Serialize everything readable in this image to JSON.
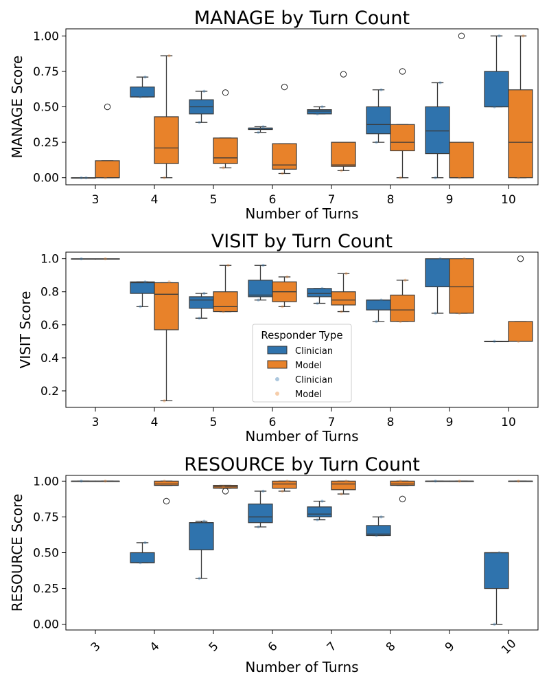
{
  "colors": {
    "Clinician": "#2f73ad",
    "Model": "#e8822a",
    "median": "#3a3a3a",
    "whisker": "#3a3a3a"
  },
  "chart_data": [
    {
      "type": "box",
      "title": "MANAGE by Turn Count",
      "xlabel": "Number of Turns",
      "ylabel": "MANAGE Score",
      "categories": [
        "3",
        "4",
        "5",
        "6",
        "7",
        "8",
        "9",
        "10"
      ],
      "ylim": [
        -0.05,
        1.05
      ],
      "yticks": [
        "0.00",
        "0.25",
        "0.50",
        "0.75",
        "1.00"
      ],
      "xtick_rotation": 0,
      "legend": null,
      "series": [
        {
          "name": "Clinician",
          "boxes": [
            {
              "min": 0.0,
              "q1": 0.0,
              "median": 0.0,
              "q3": 0.0,
              "max": 0.0,
              "outliers": [],
              "points": [
                0.0,
                0.0
              ]
            },
            {
              "min": 0.57,
              "q1": 0.57,
              "median": 0.57,
              "q3": 0.64,
              "max": 0.71,
              "outliers": [],
              "points": [
                0.57,
                0.71
              ]
            },
            {
              "min": 0.39,
              "q1": 0.45,
              "median": 0.5,
              "q3": 0.55,
              "max": 0.61,
              "outliers": [],
              "points": [
                0.39,
                0.61
              ]
            },
            {
              "min": 0.32,
              "q1": 0.34,
              "median": 0.35,
              "q3": 0.35,
              "max": 0.36,
              "outliers": [],
              "points": [
                0.32,
                0.36
              ]
            },
            {
              "min": 0.45,
              "q1": 0.45,
              "median": 0.47,
              "q3": 0.48,
              "max": 0.5,
              "outliers": [],
              "points": [
                0.45,
                0.5
              ]
            },
            {
              "min": 0.25,
              "q1": 0.31,
              "median": 0.375,
              "q3": 0.5,
              "max": 0.62,
              "outliers": [],
              "points": [
                0.25,
                0.62
              ]
            },
            {
              "min": 0.0,
              "q1": 0.17,
              "median": 0.33,
              "q3": 0.5,
              "max": 0.67,
              "outliers": [],
              "points": [
                0.0,
                0.67
              ]
            },
            {
              "min": 0.5,
              "q1": 0.5,
              "median": 0.5,
              "q3": 0.75,
              "max": 1.0,
              "outliers": [],
              "points": [
                0.5,
                1.0
              ]
            }
          ]
        },
        {
          "name": "Model",
          "boxes": [
            {
              "min": 0.0,
              "q1": 0.0,
              "median": 0.0,
              "q3": 0.12,
              "max": 0.12,
              "outliers": [
                0.5
              ],
              "points": [
                0.0
              ]
            },
            {
              "min": 0.0,
              "q1": 0.1,
              "median": 0.21,
              "q3": 0.43,
              "max": 0.86,
              "outliers": [],
              "points": [
                0.0,
                0.86
              ]
            },
            {
              "min": 0.07,
              "q1": 0.1,
              "median": 0.14,
              "q3": 0.28,
              "max": 0.28,
              "outliers": [
                0.6
              ],
              "points": [
                0.07
              ]
            },
            {
              "min": 0.03,
              "q1": 0.06,
              "median": 0.09,
              "q3": 0.24,
              "max": 0.24,
              "outliers": [
                0.64
              ],
              "points": [
                0.03
              ]
            },
            {
              "min": 0.05,
              "q1": 0.08,
              "median": 0.09,
              "q3": 0.25,
              "max": 0.25,
              "outliers": [
                0.73
              ],
              "points": [
                0.05
              ]
            },
            {
              "min": 0.0,
              "q1": 0.19,
              "median": 0.25,
              "q3": 0.375,
              "max": 0.375,
              "outliers": [
                0.75
              ],
              "points": [
                0.0
              ]
            },
            {
              "min": 0.0,
              "q1": 0.0,
              "median": 0.0,
              "q3": 0.25,
              "max": 0.25,
              "outliers": [
                1.0
              ],
              "points": [
                0.0
              ]
            },
            {
              "min": 0.0,
              "q1": 0.0,
              "median": 0.25,
              "q3": 0.62,
              "max": 1.0,
              "outliers": [],
              "points": [
                0.0,
                1.0
              ]
            }
          ]
        }
      ]
    },
    {
      "type": "box",
      "title": "VISIT by Turn Count",
      "xlabel": "Number of Turns",
      "ylabel": "VISIT Score",
      "categories": [
        "3",
        "4",
        "5",
        "6",
        "7",
        "8",
        "9",
        "10"
      ],
      "ylim": [
        0.1,
        1.04
      ],
      "yticks": [
        "0.2",
        "0.4",
        "0.6",
        "0.8",
        "1.0"
      ],
      "xtick_rotation": 0,
      "legend": {
        "title": "Responder Type",
        "location": "lower-center",
        "entries": [
          {
            "label": "Clinician",
            "kind": "box",
            "series": "Clinician"
          },
          {
            "label": "Model",
            "kind": "box",
            "series": "Model"
          },
          {
            "label": "Clinician",
            "kind": "dot",
            "series": "Clinician"
          },
          {
            "label": "Model",
            "kind": "dot",
            "series": "Model"
          }
        ]
      },
      "series": [
        {
          "name": "Clinician",
          "boxes": [
            {
              "min": 1.0,
              "q1": 1.0,
              "median": 1.0,
              "q3": 1.0,
              "max": 1.0,
              "outliers": [],
              "points": [
                1.0
              ]
            },
            {
              "min": 0.71,
              "q1": 0.79,
              "median": 0.855,
              "q3": 0.86,
              "max": 0.86,
              "outliers": [],
              "points": [
                0.71,
                0.86
              ]
            },
            {
              "min": 0.64,
              "q1": 0.7,
              "median": 0.75,
              "q3": 0.77,
              "max": 0.79,
              "outliers": [],
              "points": [
                0.64,
                0.79
              ]
            },
            {
              "min": 0.75,
              "q1": 0.77,
              "median": 0.78,
              "q3": 0.87,
              "max": 0.96,
              "outliers": [],
              "points": [
                0.75,
                0.96
              ]
            },
            {
              "min": 0.73,
              "q1": 0.77,
              "median": 0.79,
              "q3": 0.82,
              "max": 0.82,
              "outliers": [],
              "points": [
                0.73,
                0.82
              ]
            },
            {
              "min": 0.62,
              "q1": 0.69,
              "median": 0.75,
              "q3": 0.75,
              "max": 0.75,
              "outliers": [],
              "points": [
                0.62,
                0.75
              ]
            },
            {
              "min": 0.67,
              "q1": 0.83,
              "median": 1.0,
              "q3": 1.0,
              "max": 1.0,
              "outliers": [],
              "points": [
                0.67,
                1.0
              ]
            },
            {
              "min": 0.5,
              "q1": 0.5,
              "median": 0.5,
              "q3": 0.5,
              "max": 0.5,
              "outliers": [],
              "points": [
                0.5
              ]
            }
          ]
        },
        {
          "name": "Model",
          "boxes": [
            {
              "min": 1.0,
              "q1": 1.0,
              "median": 1.0,
              "q3": 1.0,
              "max": 1.0,
              "outliers": [],
              "points": [
                1.0
              ]
            },
            {
              "min": 0.14,
              "q1": 0.57,
              "median": 0.785,
              "q3": 0.855,
              "max": 0.855,
              "outliers": [],
              "points": [
                0.14,
                0.86
              ]
            },
            {
              "min": 0.68,
              "q1": 0.68,
              "median": 0.71,
              "q3": 0.8,
              "max": 0.96,
              "outliers": [],
              "points": [
                0.68,
                0.96
              ]
            },
            {
              "min": 0.71,
              "q1": 0.74,
              "median": 0.8,
              "q3": 0.86,
              "max": 0.89,
              "outliers": [],
              "points": [
                0.71,
                0.89
              ]
            },
            {
              "min": 0.68,
              "q1": 0.72,
              "median": 0.75,
              "q3": 0.8,
              "max": 0.91,
              "outliers": [],
              "points": [
                0.68,
                0.91
              ]
            },
            {
              "min": 0.62,
              "q1": 0.62,
              "median": 0.69,
              "q3": 0.78,
              "max": 0.87,
              "outliers": [],
              "points": [
                0.62,
                0.87
              ]
            },
            {
              "min": 0.67,
              "q1": 0.67,
              "median": 0.83,
              "q3": 1.0,
              "max": 1.0,
              "outliers": [],
              "points": [
                0.67,
                1.0
              ]
            },
            {
              "min": 0.5,
              "q1": 0.5,
              "median": 0.5,
              "q3": 0.62,
              "max": 0.62,
              "outliers": [
                1.0
              ],
              "points": [
                0.5
              ]
            }
          ]
        }
      ]
    },
    {
      "type": "box",
      "title": "RESOURCE by Turn Count",
      "xlabel": "Number of Turns",
      "ylabel": "RESOURCE Score",
      "categories": [
        "3",
        "4",
        "5",
        "6",
        "7",
        "8",
        "9",
        "10"
      ],
      "ylim": [
        -0.04,
        1.04
      ],
      "yticks": [
        "0.00",
        "0.25",
        "0.50",
        "0.75",
        "1.00"
      ],
      "xtick_rotation": -45,
      "legend": null,
      "series": [
        {
          "name": "Clinician",
          "boxes": [
            {
              "min": 1.0,
              "q1": 1.0,
              "median": 1.0,
              "q3": 1.0,
              "max": 1.0,
              "outliers": [],
              "points": [
                1.0
              ]
            },
            {
              "min": 0.43,
              "q1": 0.43,
              "median": 0.43,
              "q3": 0.5,
              "max": 0.57,
              "outliers": [],
              "points": [
                0.43,
                0.57
              ]
            },
            {
              "min": 0.32,
              "q1": 0.52,
              "median": 0.71,
              "q3": 0.71,
              "max": 0.72,
              "outliers": [],
              "points": [
                0.32,
                0.72
              ]
            },
            {
              "min": 0.68,
              "q1": 0.71,
              "median": 0.75,
              "q3": 0.84,
              "max": 0.93,
              "outliers": [],
              "points": [
                0.68,
                0.93
              ]
            },
            {
              "min": 0.73,
              "q1": 0.75,
              "median": 0.77,
              "q3": 0.82,
              "max": 0.86,
              "outliers": [],
              "points": [
                0.73,
                0.86
              ]
            },
            {
              "min": 0.62,
              "q1": 0.62,
              "median": 0.63,
              "q3": 0.69,
              "max": 0.75,
              "outliers": [],
              "points": [
                0.62,
                0.75
              ]
            },
            {
              "min": 1.0,
              "q1": 1.0,
              "median": 1.0,
              "q3": 1.0,
              "max": 1.0,
              "outliers": [],
              "points": [
                1.0
              ]
            },
            {
              "min": 0.0,
              "q1": 0.25,
              "median": 0.5,
              "q3": 0.5,
              "max": 0.5,
              "outliers": [],
              "points": [
                0.0,
                0.5
              ]
            }
          ]
        },
        {
          "name": "Model",
          "boxes": [
            {
              "min": 1.0,
              "q1": 1.0,
              "median": 1.0,
              "q3": 1.0,
              "max": 1.0,
              "outliers": [],
              "points": [
                1.0
              ]
            },
            {
              "min": 0.97,
              "q1": 0.97,
              "median": 0.98,
              "q3": 1.0,
              "max": 1.0,
              "outliers": [
                0.86
              ],
              "points": [
                1.0
              ]
            },
            {
              "min": 0.95,
              "q1": 0.95,
              "median": 0.96,
              "q3": 0.97,
              "max": 0.97,
              "outliers": [
                0.93
              ],
              "points": [
                0.96
              ]
            },
            {
              "min": 0.93,
              "q1": 0.95,
              "median": 0.98,
              "q3": 1.0,
              "max": 1.0,
              "outliers": [],
              "points": [
                0.93,
                1.0
              ]
            },
            {
              "min": 0.91,
              "q1": 0.94,
              "median": 0.98,
              "q3": 1.0,
              "max": 1.0,
              "outliers": [],
              "points": [
                0.91,
                1.0
              ]
            },
            {
              "min": 0.97,
              "q1": 0.97,
              "median": 0.98,
              "q3": 1.0,
              "max": 1.0,
              "outliers": [
                0.875
              ],
              "points": [
                1.0
              ]
            },
            {
              "min": 1.0,
              "q1": 1.0,
              "median": 1.0,
              "q3": 1.0,
              "max": 1.0,
              "outliers": [],
              "points": [
                1.0
              ]
            },
            {
              "min": 1.0,
              "q1": 1.0,
              "median": 1.0,
              "q3": 1.0,
              "max": 1.0,
              "outliers": [],
              "points": [
                1.0
              ]
            }
          ]
        }
      ]
    }
  ]
}
